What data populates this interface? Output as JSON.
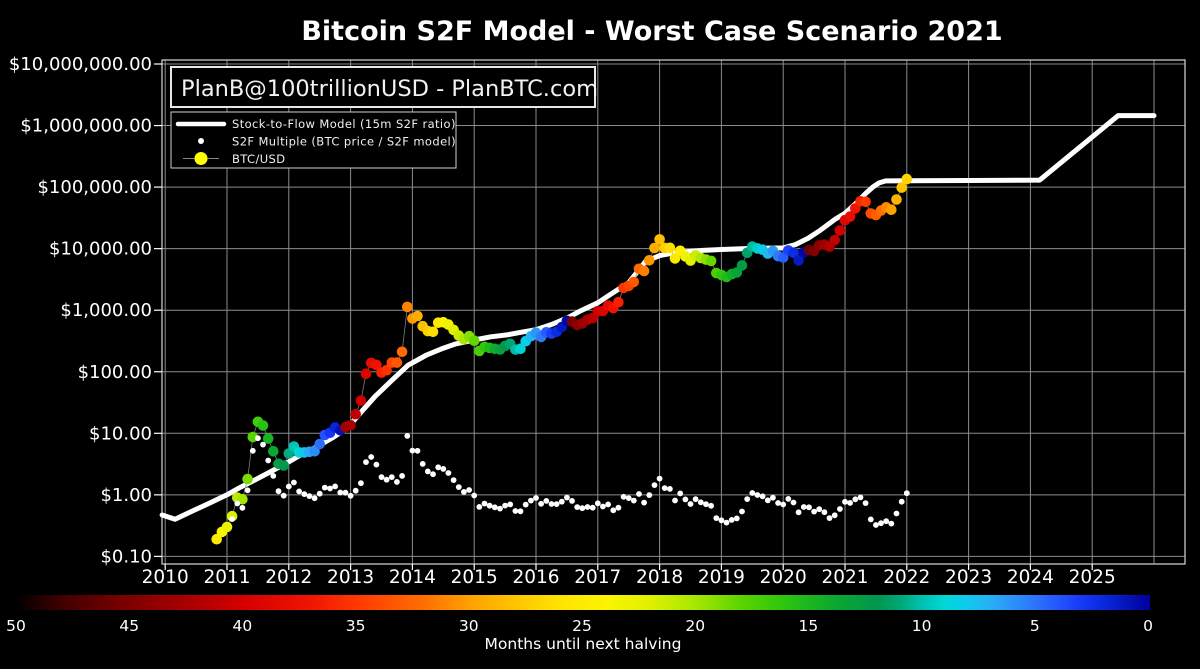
{
  "title": "Bitcoin S2F Model - Worst Case Scenario 2021",
  "watermark": "PlanB@100trillionUSD - PlanBTC.com",
  "legend": {
    "model_label": "Stock-to-Flow Model (15m S2F ratio)",
    "multiple_label": "S2F Multiple (BTC price / S2F model)",
    "btc_label": "BTC/USD"
  },
  "colors": {
    "background": "#000000",
    "grid": "#8c8c8c",
    "frame": "#c8c8c8",
    "text": "#ffffff",
    "model_line": "#ffffff",
    "multiple_dot": "#ffffff",
    "connector": "#8a8a8a",
    "btc_legend_dot": "#ffff00"
  },
  "chart_data": {
    "type": "scatter",
    "title": "Bitcoin S2F Model - Worst Case Scenario 2021",
    "x_axis": {
      "ticks": [
        2010,
        2011,
        2012,
        2013,
        2014,
        2015,
        2016,
        2017,
        2018,
        2019,
        2020,
        2021,
        2022,
        2023,
        2024,
        2025
      ],
      "grid_years": [
        2010,
        2011,
        2012,
        2013,
        2014,
        2015,
        2016,
        2017,
        2018,
        2019,
        2020,
        2021,
        2022,
        2023,
        2024,
        2025,
        2026
      ],
      "range": [
        2009.95,
        2026.5
      ]
    },
    "y_axis": {
      "scale": "log",
      "tick_labels": [
        "$10,000,000.00",
        "$1,000,000.00",
        "$100,000.00",
        "$10,000.00",
        "$1,000.00",
        "$100.00",
        "$10.00",
        "$1.00",
        "$0.10"
      ],
      "tick_values": [
        10000000,
        1000000,
        100000,
        10000,
        1000,
        100,
        10,
        1,
        0.1
      ],
      "range": [
        0.075,
        11300000
      ]
    },
    "colorbar": {
      "label": "Months until next halving",
      "ticks": [
        50,
        45,
        40,
        35,
        30,
        25,
        20,
        15,
        10,
        5,
        0
      ],
      "range": [
        50,
        0
      ],
      "stops": [
        [
          50,
          "#000000"
        ],
        [
          48,
          "#400000"
        ],
        [
          45,
          "#7f0000"
        ],
        [
          42,
          "#b00000"
        ],
        [
          40,
          "#d40000"
        ],
        [
          37,
          "#f01500"
        ],
        [
          35,
          "#ff3800"
        ],
        [
          32,
          "#ff6f00"
        ],
        [
          30,
          "#ffa000"
        ],
        [
          28,
          "#ffc400"
        ],
        [
          26,
          "#ffe300"
        ],
        [
          24,
          "#fcf400"
        ],
        [
          22,
          "#dff000"
        ],
        [
          20,
          "#a5e600"
        ],
        [
          18,
          "#5ad400"
        ],
        [
          16,
          "#2ac410"
        ],
        [
          14,
          "#0ca92e"
        ],
        [
          12,
          "#00964f"
        ],
        [
          11,
          "#00a878"
        ],
        [
          10,
          "#00c2b4"
        ],
        [
          9,
          "#00d8d8"
        ],
        [
          8,
          "#10c8ee"
        ],
        [
          7,
          "#28aef5"
        ],
        [
          6,
          "#2b90fa"
        ],
        [
          5,
          "#2d72fa"
        ],
        [
          4,
          "#2454ff"
        ],
        [
          3,
          "#1538f5"
        ],
        [
          2,
          "#0928dc"
        ],
        [
          1,
          "#0414b8"
        ],
        [
          0,
          "#00009e"
        ]
      ]
    },
    "halvings": [
      2012.908,
      2016.519,
      2020.362,
      2024.25
    ],
    "model_line": {
      "name": "Stock-to-Flow Model (15m S2F ratio)",
      "points": [
        [
          2009.95,
          0.47
        ],
        [
          2010.16,
          0.4
        ],
        [
          2010.45,
          0.55
        ],
        [
          2010.7,
          0.72
        ],
        [
          2011.0,
          1.0
        ],
        [
          2011.2,
          1.3
        ],
        [
          2011.45,
          1.74
        ],
        [
          2011.7,
          2.36
        ],
        [
          2012.0,
          3.44
        ],
        [
          2012.2,
          4.5
        ],
        [
          2012.45,
          6.0
        ],
        [
          2012.7,
          8.4
        ],
        [
          2012.95,
          12.2
        ],
        [
          2013.2,
          24
        ],
        [
          2013.4,
          40
        ],
        [
          2013.67,
          73
        ],
        [
          2013.93,
          128
        ],
        [
          2014.23,
          187
        ],
        [
          2014.47,
          235
        ],
        [
          2014.7,
          283
        ],
        [
          2015.0,
          328
        ],
        [
          2015.27,
          369
        ],
        [
          2015.53,
          397
        ],
        [
          2015.8,
          446
        ],
        [
          2016.0,
          483
        ],
        [
          2016.25,
          585
        ],
        [
          2016.52,
          758
        ],
        [
          2016.73,
          985
        ],
        [
          2017.0,
          1320
        ],
        [
          2017.2,
          1790
        ],
        [
          2017.5,
          2800
        ],
        [
          2017.77,
          6150
        ],
        [
          2018.0,
          7700
        ],
        [
          2018.27,
          8650
        ],
        [
          2018.7,
          9350
        ],
        [
          2019.0,
          9700
        ],
        [
          2019.5,
          10100
        ],
        [
          2020.0,
          10300
        ],
        [
          2020.2,
          11700
        ],
        [
          2020.4,
          14700
        ],
        [
          2020.6,
          19900
        ],
        [
          2020.84,
          30000
        ],
        [
          2021.0,
          37600
        ],
        [
          2021.18,
          54800
        ],
        [
          2021.34,
          80000
        ],
        [
          2021.45,
          100000
        ],
        [
          2021.55,
          117000
        ],
        [
          2021.66,
          126000
        ],
        [
          2022.0,
          127000
        ],
        [
          2023.0,
          128000
        ],
        [
          2024.15,
          130000
        ],
        [
          2025.42,
          1450000
        ],
        [
          2026.0,
          1450000
        ]
      ]
    },
    "btc_monthly": {
      "name": "BTC/USD",
      "points": [
        [
          2010.833,
          0.19
        ],
        [
          2010.917,
          0.25
        ],
        [
          2011.0,
          0.3
        ],
        [
          2011.083,
          0.45
        ],
        [
          2011.167,
          0.9
        ],
        [
          2011.25,
          0.85
        ],
        [
          2011.333,
          1.8
        ],
        [
          2011.417,
          8.7
        ],
        [
          2011.5,
          15.4
        ],
        [
          2011.583,
          13.4
        ],
        [
          2011.667,
          8.2
        ],
        [
          2011.75,
          5.1
        ],
        [
          2011.833,
          3.2
        ],
        [
          2011.917,
          3.0
        ],
        [
          2012.0,
          4.7
        ],
        [
          2012.083,
          6.1
        ],
        [
          2012.167,
          4.9
        ],
        [
          2012.25,
          4.9
        ],
        [
          2012.333,
          5.0
        ],
        [
          2012.417,
          5.1
        ],
        [
          2012.5,
          6.7
        ],
        [
          2012.583,
          9.4
        ],
        [
          2012.667,
          10.2
        ],
        [
          2012.75,
          12.4
        ],
        [
          2012.833,
          11.2
        ],
        [
          2012.917,
          12.6
        ],
        [
          2013.0,
          13.5
        ],
        [
          2013.083,
          20.4
        ],
        [
          2013.167,
          34
        ],
        [
          2013.25,
          93
        ],
        [
          2013.333,
          139
        ],
        [
          2013.417,
          129
        ],
        [
          2013.5,
          97
        ],
        [
          2013.583,
          106
        ],
        [
          2013.667,
          141
        ],
        [
          2013.75,
          141
        ],
        [
          2013.833,
          211
        ],
        [
          2013.917,
          1130
        ],
        [
          2014.0,
          732
        ],
        [
          2014.083,
          806
        ],
        [
          2014.167,
          550
        ],
        [
          2014.25,
          458
        ],
        [
          2014.333,
          446
        ],
        [
          2014.417,
          627
        ],
        [
          2014.5,
          635
        ],
        [
          2014.583,
          583
        ],
        [
          2014.667,
          478
        ],
        [
          2014.75,
          387
        ],
        [
          2014.833,
          338
        ],
        [
          2014.917,
          378
        ],
        [
          2015.0,
          320
        ],
        [
          2015.083,
          217
        ],
        [
          2015.167,
          254
        ],
        [
          2015.25,
          244
        ],
        [
          2015.333,
          236
        ],
        [
          2015.417,
          230
        ],
        [
          2015.5,
          263
        ],
        [
          2015.583,
          284
        ],
        [
          2015.667,
          230
        ],
        [
          2015.75,
          236
        ],
        [
          2015.833,
          314
        ],
        [
          2015.917,
          377
        ],
        [
          2016.0,
          430
        ],
        [
          2016.083,
          368
        ],
        [
          2016.167,
          437
        ],
        [
          2016.25,
          416
        ],
        [
          2016.333,
          448
        ],
        [
          2016.417,
          531
        ],
        [
          2016.5,
          670
        ],
        [
          2016.583,
          655
        ],
        [
          2016.667,
          575
        ],
        [
          2016.75,
          610
        ],
        [
          2016.833,
          700
        ],
        [
          2016.917,
          745
        ],
        [
          2017.0,
          963
        ],
        [
          2017.083,
          970
        ],
        [
          2017.167,
          1190
        ],
        [
          2017.25,
          1080
        ],
        [
          2017.333,
          1350
        ],
        [
          2017.417,
          2300
        ],
        [
          2017.5,
          2480
        ],
        [
          2017.583,
          2875
        ],
        [
          2017.667,
          4700
        ],
        [
          2017.75,
          4340
        ],
        [
          2017.833,
          6470
        ],
        [
          2017.917,
          10230
        ],
        [
          2018.0,
          14160
        ],
        [
          2018.083,
          10280
        ],
        [
          2018.167,
          10330
        ],
        [
          2018.25,
          6940
        ],
        [
          2018.333,
          9240
        ],
        [
          2018.417,
          7490
        ],
        [
          2018.5,
          6400
        ],
        [
          2018.583,
          7780
        ],
        [
          2018.667,
          7040
        ],
        [
          2018.75,
          6630
        ],
        [
          2018.833,
          6320
        ],
        [
          2018.917,
          4020
        ],
        [
          2019.0,
          3740
        ],
        [
          2019.083,
          3460
        ],
        [
          2019.167,
          3850
        ],
        [
          2019.25,
          4100
        ],
        [
          2019.333,
          5350
        ],
        [
          2019.417,
          8570
        ],
        [
          2019.5,
          10820
        ],
        [
          2019.583,
          10090
        ],
        [
          2019.667,
          9630
        ],
        [
          2019.75,
          8310
        ],
        [
          2019.833,
          9200
        ],
        [
          2019.917,
          7570
        ],
        [
          2020.0,
          7190
        ],
        [
          2020.083,
          9350
        ],
        [
          2020.167,
          8600
        ],
        [
          2020.25,
          6440
        ],
        [
          2020.333,
          8660
        ],
        [
          2020.417,
          9460
        ],
        [
          2020.5,
          9140
        ],
        [
          2020.583,
          11350
        ],
        [
          2020.667,
          11660
        ],
        [
          2020.75,
          10780
        ],
        [
          2020.833,
          13800
        ],
        [
          2020.917,
          19710
        ],
        [
          2021.0,
          28990
        ],
        [
          2021.083,
          33110
        ],
        [
          2021.167,
          45140
        ],
        [
          2021.25,
          58790
        ],
        [
          2021.333,
          57750
        ],
        [
          2021.417,
          37330
        ],
        [
          2021.5,
          35040
        ],
        [
          2021.583,
          41490
        ],
        [
          2021.667,
          47000
        ],
        [
          2021.75,
          43000
        ],
        [
          2021.833,
          63000
        ],
        [
          2021.917,
          98000
        ],
        [
          2022.0,
          135000
        ]
      ]
    },
    "s2f_multiple": {
      "name": "S2F Multiple (BTC price / S2F model)",
      "derivation": "btc_price / model_value",
      "start_year": 2011.05
    }
  }
}
